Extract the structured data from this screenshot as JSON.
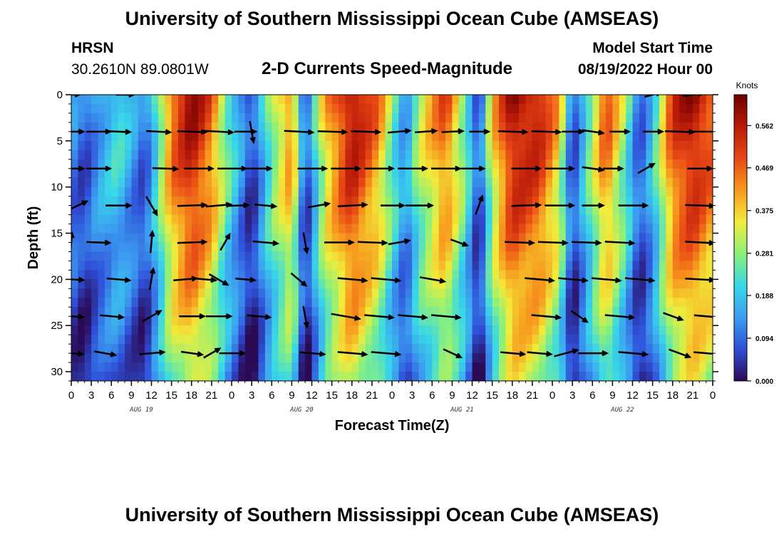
{
  "header": {
    "title": "University of Southern Mississippi Ocean Cube (AMSEAS)",
    "station": "HRSN",
    "coordinates": "30.2610N  89.0801W",
    "subtitle": "2-D Currents Speed-Magnitude",
    "model_start_label": "Model Start Time",
    "model_start_value": "08/19/2022 Hour 00"
  },
  "footer": {
    "title": "University of Southern Mississippi Ocean Cube (AMSEAS)"
  },
  "chart_data": {
    "type": "heatmap",
    "title": "2-D Currents Speed-Magnitude",
    "xlabel": "Forecast Time(Z)",
    "ylabel": "Depth (ft)",
    "x_tick_labels": [
      "0",
      "3",
      "6",
      "9",
      "12",
      "15",
      "18",
      "21",
      "0",
      "3",
      "6",
      "9",
      "12",
      "15",
      "18",
      "21",
      "0",
      "3",
      "6",
      "9",
      "12",
      "15",
      "18",
      "21",
      "0",
      "3",
      "6",
      "9",
      "12",
      "15",
      "18",
      "21",
      "0"
    ],
    "day_labels": [
      "AUG 19",
      "AUG 20",
      "AUG 21",
      "AUG 22"
    ],
    "xlim_hours": [
      0,
      96
    ],
    "ylim_ft": [
      0,
      31
    ],
    "y_ticks": [
      0,
      5,
      10,
      15,
      20,
      25,
      30
    ],
    "colorbar": {
      "unit": "Knots",
      "ticks": [
        "0.562",
        "0.469",
        "0.375",
        "0.281",
        "0.188",
        "0.094",
        "0.000"
      ],
      "range": [
        0,
        0.63
      ],
      "colors": [
        "#2a0a55",
        "#2f4fd8",
        "#3c9cf0",
        "#38d8e8",
        "#8cf07a",
        "#f2ec3a",
        "#f79a1e",
        "#e84815",
        "#b81a08",
        "#6e0000"
      ]
    },
    "speed_profile_surface": [
      {
        "hour": 0,
        "knots": 0.14
      },
      {
        "hour": 2,
        "knots": 0.08
      },
      {
        "hour": 4,
        "knots": 0.16
      },
      {
        "hour": 7,
        "knots": 0.23
      },
      {
        "hour": 11,
        "knots": 0.09
      },
      {
        "hour": 13,
        "knots": 0.27
      },
      {
        "hour": 15,
        "knots": 0.48
      },
      {
        "hour": 18,
        "knots": 0.6
      },
      {
        "hour": 21,
        "knots": 0.48
      },
      {
        "hour": 23,
        "knots": 0.3
      },
      {
        "hour": 27,
        "knots": 0.05
      },
      {
        "hour": 30,
        "knots": 0.3
      },
      {
        "hour": 33,
        "knots": 0.46
      },
      {
        "hour": 35,
        "knots": 0.05
      },
      {
        "hour": 38,
        "knots": 0.4
      },
      {
        "hour": 42,
        "knots": 0.6
      },
      {
        "hour": 46,
        "knots": 0.45
      },
      {
        "hour": 48,
        "knots": 0.28
      },
      {
        "hour": 50,
        "knots": 0.14
      },
      {
        "hour": 52,
        "knots": 0.32
      },
      {
        "hour": 56,
        "knots": 0.5
      },
      {
        "hour": 59,
        "knots": 0.28
      },
      {
        "hour": 61,
        "knots": 0.05
      },
      {
        "hour": 63,
        "knots": 0.38
      },
      {
        "hour": 66,
        "knots": 0.6
      },
      {
        "hour": 70,
        "knots": 0.56
      },
      {
        "hour": 73,
        "knots": 0.4
      },
      {
        "hour": 75,
        "knots": 0.06
      },
      {
        "hour": 78,
        "knots": 0.32
      },
      {
        "hour": 80,
        "knots": 0.5
      },
      {
        "hour": 83,
        "knots": 0.28
      },
      {
        "hour": 85,
        "knots": 0.08
      },
      {
        "hour": 87,
        "knots": 0.2
      },
      {
        "hour": 90,
        "knots": 0.52
      },
      {
        "hour": 93,
        "knots": 0.6
      },
      {
        "hour": 96,
        "knots": 0.5
      }
    ],
    "vector_depths_ft": [
      0,
      4,
      8,
      12,
      16,
      20,
      24,
      28
    ],
    "vectors": [
      {
        "depth": 0,
        "hour": 0,
        "dir": 2,
        "mag": 0.35
      },
      {
        "depth": 0,
        "hour": 8,
        "dir": 0,
        "mag": 0.4
      },
      {
        "depth": 0,
        "hour": 87,
        "dir": 15,
        "mag": 0.35
      },
      {
        "depth": 0,
        "hour": 93,
        "dir": 8,
        "mag": 0.55
      },
      {
        "depth": 4,
        "hour": 0,
        "dir": 0,
        "mag": 0.75
      },
      {
        "depth": 4,
        "hour": 4,
        "dir": 0,
        "mag": 0.75
      },
      {
        "depth": 4,
        "hour": 7,
        "dir": -2,
        "mag": 0.75
      },
      {
        "depth": 4,
        "hour": 13,
        "dir": -3,
        "mag": 0.75
      },
      {
        "depth": 4,
        "hour": 18,
        "dir": -2,
        "mag": 1
      },
      {
        "depth": 4,
        "hour": 22,
        "dir": -3,
        "mag": 1
      },
      {
        "depth": 4,
        "hour": 26,
        "dir": 0,
        "mag": 0.6
      },
      {
        "depth": 4,
        "hour": 27,
        "dir": -80,
        "mag": 0.6
      },
      {
        "depth": 4,
        "hour": 34,
        "dir": -3,
        "mag": 1
      },
      {
        "depth": 4,
        "hour": 39,
        "dir": -2,
        "mag": 1
      },
      {
        "depth": 4,
        "hour": 44,
        "dir": -2,
        "mag": 1
      },
      {
        "depth": 4,
        "hour": 49,
        "dir": 5,
        "mag": 0.65
      },
      {
        "depth": 4,
        "hour": 53,
        "dir": 4,
        "mag": 0.6
      },
      {
        "depth": 4,
        "hour": 57,
        "dir": 3,
        "mag": 0.6
      },
      {
        "depth": 4,
        "hour": 61,
        "dir": 0,
        "mag": 0.5
      },
      {
        "depth": 4,
        "hour": 66,
        "dir": -2,
        "mag": 1
      },
      {
        "depth": 4,
        "hour": 71,
        "dir": -2,
        "mag": 1
      },
      {
        "depth": 4,
        "hour": 75,
        "dir": 0,
        "mag": 0.6
      },
      {
        "depth": 4,
        "hour": 78,
        "dir": -8,
        "mag": 0.6
      },
      {
        "depth": 4,
        "hour": 82,
        "dir": 0,
        "mag": 0.5
      },
      {
        "depth": 4,
        "hour": 87,
        "dir": 0,
        "mag": 0.5
      },
      {
        "depth": 4,
        "hour": 91,
        "dir": -2,
        "mag": 1
      },
      {
        "depth": 4,
        "hour": 95,
        "dir": 0,
        "mag": 1
      },
      {
        "depth": 8,
        "hour": 0,
        "dir": 0,
        "mag": 0.75
      },
      {
        "depth": 8,
        "hour": 4,
        "dir": 0,
        "mag": 0.75
      },
      {
        "depth": 8,
        "hour": 14,
        "dir": -2,
        "mag": 0.8
      },
      {
        "depth": 8,
        "hour": 19,
        "dir": 0,
        "mag": 1
      },
      {
        "depth": 8,
        "hour": 24,
        "dir": 0,
        "mag": 1
      },
      {
        "depth": 8,
        "hour": 28,
        "dir": 0,
        "mag": 0.8
      },
      {
        "depth": 8,
        "hour": 36,
        "dir": 0,
        "mag": 1
      },
      {
        "depth": 8,
        "hour": 41,
        "dir": 0,
        "mag": 1
      },
      {
        "depth": 8,
        "hour": 46,
        "dir": 0,
        "mag": 1
      },
      {
        "depth": 8,
        "hour": 51,
        "dir": 0,
        "mag": 1
      },
      {
        "depth": 8,
        "hour": 56,
        "dir": 0,
        "mag": 1
      },
      {
        "depth": 8,
        "hour": 60,
        "dir": 0,
        "mag": 0.7
      },
      {
        "depth": 8,
        "hour": 68,
        "dir": 0,
        "mag": 1
      },
      {
        "depth": 8,
        "hour": 73,
        "dir": 0,
        "mag": 1
      },
      {
        "depth": 8,
        "hour": 78,
        "dir": -8,
        "mag": 0.6
      },
      {
        "depth": 8,
        "hour": 81,
        "dir": 0,
        "mag": 0.5
      },
      {
        "depth": 8,
        "hour": 86,
        "dir": 30,
        "mag": 0.45
      },
      {
        "depth": 8,
        "hour": 94,
        "dir": 0,
        "mag": 0.75
      },
      {
        "depth": 12,
        "hour": 1,
        "dir": 25,
        "mag": 0.5
      },
      {
        "depth": 12,
        "hour": 7,
        "dir": 0,
        "mag": 0.8
      },
      {
        "depth": 12,
        "hour": 12,
        "dir": -60,
        "mag": 0.6
      },
      {
        "depth": 12,
        "hour": 18,
        "dir": 2,
        "mag": 1
      },
      {
        "depth": 12,
        "hour": 22,
        "dir": 5,
        "mag": 0.8
      },
      {
        "depth": 12,
        "hour": 25,
        "dir": 2,
        "mag": 0.5
      },
      {
        "depth": 12,
        "hour": 29,
        "dir": -5,
        "mag": 0.6
      },
      {
        "depth": 12,
        "hour": 37,
        "dir": 10,
        "mag": 0.6
      },
      {
        "depth": 12,
        "hour": 42,
        "dir": 3,
        "mag": 1
      },
      {
        "depth": 12,
        "hour": 48,
        "dir": 0,
        "mag": 0.7
      },
      {
        "depth": 12,
        "hour": 52,
        "dir": 0,
        "mag": 0.9
      },
      {
        "depth": 12,
        "hour": 61,
        "dir": 70,
        "mag": 0.5
      },
      {
        "depth": 12,
        "hour": 68,
        "dir": 2,
        "mag": 1
      },
      {
        "depth": 12,
        "hour": 73,
        "dir": 0,
        "mag": 1
      },
      {
        "depth": 12,
        "hour": 78,
        "dir": 0,
        "mag": 0.6
      },
      {
        "depth": 12,
        "hour": 84,
        "dir": 0,
        "mag": 1
      },
      {
        "depth": 12,
        "hour": 94,
        "dir": -2,
        "mag": 1
      },
      {
        "depth": 16,
        "hour": 0,
        "dir": 85,
        "mag": 0.45
      },
      {
        "depth": 16,
        "hour": 4,
        "dir": -2,
        "mag": 0.7
      },
      {
        "depth": 16,
        "hour": 12,
        "dir": 85,
        "mag": 0.6
      },
      {
        "depth": 16,
        "hour": 18,
        "dir": 2,
        "mag": 1
      },
      {
        "depth": 16,
        "hour": 23,
        "dir": 60,
        "mag": 0.45
      },
      {
        "depth": 16,
        "hour": 29,
        "dir": -5,
        "mag": 0.8
      },
      {
        "depth": 16,
        "hour": 35,
        "dir": -80,
        "mag": 0.55
      },
      {
        "depth": 16,
        "hour": 40,
        "dir": 0,
        "mag": 1
      },
      {
        "depth": 16,
        "hour": 45,
        "dir": -2,
        "mag": 1
      },
      {
        "depth": 16,
        "hour": 49,
        "dir": 10,
        "mag": 0.6
      },
      {
        "depth": 16,
        "hour": 58,
        "dir": -20,
        "mag": 0.4
      },
      {
        "depth": 16,
        "hour": 67,
        "dir": -2,
        "mag": 1
      },
      {
        "depth": 16,
        "hour": 72,
        "dir": -2,
        "mag": 1
      },
      {
        "depth": 16,
        "hour": 77,
        "dir": -2,
        "mag": 1
      },
      {
        "depth": 16,
        "hour": 82,
        "dir": -3,
        "mag": 1
      },
      {
        "depth": 16,
        "hour": 94,
        "dir": -3,
        "mag": 1
      },
      {
        "depth": 20,
        "hour": 0,
        "dir": -3,
        "mag": 0.75
      },
      {
        "depth": 20,
        "hour": 7,
        "dir": -5,
        "mag": 0.7
      },
      {
        "depth": 20,
        "hour": 12,
        "dir": 80,
        "mag": 0.6
      },
      {
        "depth": 20,
        "hour": 17,
        "dir": 5,
        "mag": 0.7
      },
      {
        "depth": 20,
        "hour": 20,
        "dir": -5,
        "mag": 0.6
      },
      {
        "depth": 20,
        "hour": 22,
        "dir": -30,
        "mag": 0.6
      },
      {
        "depth": 20,
        "hour": 26,
        "dir": -5,
        "mag": 0.5
      },
      {
        "depth": 20,
        "hour": 34,
        "dir": -40,
        "mag": 0.5
      },
      {
        "depth": 20,
        "hour": 42,
        "dir": -5,
        "mag": 1
      },
      {
        "depth": 20,
        "hour": 47,
        "dir": -5,
        "mag": 1
      },
      {
        "depth": 20,
        "hour": 54,
        "dir": -10,
        "mag": 0.8
      },
      {
        "depth": 20,
        "hour": 70,
        "dir": -5,
        "mag": 1
      },
      {
        "depth": 20,
        "hour": 75,
        "dir": -5,
        "mag": 1
      },
      {
        "depth": 20,
        "hour": 80,
        "dir": -5,
        "mag": 1
      },
      {
        "depth": 20,
        "hour": 85,
        "dir": -5,
        "mag": 1
      },
      {
        "depth": 20,
        "hour": 94,
        "dir": -3,
        "mag": 1
      },
      {
        "depth": 24,
        "hour": 0,
        "dir": -3,
        "mag": 0.7
      },
      {
        "depth": 24,
        "hour": 6,
        "dir": -5,
        "mag": 0.7
      },
      {
        "depth": 24,
        "hour": 12,
        "dir": 30,
        "mag": 0.6
      },
      {
        "depth": 24,
        "hour": 18,
        "dir": 0,
        "mag": 0.8
      },
      {
        "depth": 24,
        "hour": 22,
        "dir": 0,
        "mag": 0.8
      },
      {
        "depth": 24,
        "hour": 28,
        "dir": -5,
        "mag": 0.7
      },
      {
        "depth": 24,
        "hour": 35,
        "dir": -80,
        "mag": 0.6
      },
      {
        "depth": 24,
        "hour": 41,
        "dir": -10,
        "mag": 1
      },
      {
        "depth": 24,
        "hour": 46,
        "dir": -5,
        "mag": 1
      },
      {
        "depth": 24,
        "hour": 51,
        "dir": -5,
        "mag": 1
      },
      {
        "depth": 24,
        "hour": 56,
        "dir": -5,
        "mag": 1
      },
      {
        "depth": 24,
        "hour": 71,
        "dir": -5,
        "mag": 1
      },
      {
        "depth": 24,
        "hour": 76,
        "dir": -35,
        "mag": 0.5
      },
      {
        "depth": 24,
        "hour": 82,
        "dir": -5,
        "mag": 1
      },
      {
        "depth": 24,
        "hour": 90,
        "dir": -20,
        "mag": 0.55
      },
      {
        "depth": 24,
        "hour": 95,
        "dir": -5,
        "mag": 0.75
      },
      {
        "depth": 28,
        "hour": 0,
        "dir": -5,
        "mag": 0.7
      },
      {
        "depth": 28,
        "hour": 5,
        "dir": -10,
        "mag": 0.6
      },
      {
        "depth": 28,
        "hour": 12,
        "dir": 5,
        "mag": 0.8
      },
      {
        "depth": 28,
        "hour": 18,
        "dir": -8,
        "mag": 0.6
      },
      {
        "depth": 28,
        "hour": 21,
        "dir": 30,
        "mag": 0.45
      },
      {
        "depth": 28,
        "hour": 24,
        "dir": 0,
        "mag": 0.8
      },
      {
        "depth": 28,
        "hour": 36,
        "dir": -5,
        "mag": 0.8
      },
      {
        "depth": 28,
        "hour": 42,
        "dir": -5,
        "mag": 1
      },
      {
        "depth": 28,
        "hour": 47,
        "dir": -5,
        "mag": 1
      },
      {
        "depth": 28,
        "hour": 57,
        "dir": -25,
        "mag": 0.5
      },
      {
        "depth": 28,
        "hour": 66,
        "dir": -5,
        "mag": 0.75
      },
      {
        "depth": 28,
        "hour": 70,
        "dir": -5,
        "mag": 0.75
      },
      {
        "depth": 28,
        "hour": 74,
        "dir": 15,
        "mag": 0.75
      },
      {
        "depth": 28,
        "hour": 78,
        "dir": 0,
        "mag": 1
      },
      {
        "depth": 28,
        "hour": 84,
        "dir": -5,
        "mag": 1
      },
      {
        "depth": 28,
        "hour": 91,
        "dir": -20,
        "mag": 0.65
      },
      {
        "depth": 28,
        "hour": 95,
        "dir": -5,
        "mag": 0.8
      }
    ]
  }
}
